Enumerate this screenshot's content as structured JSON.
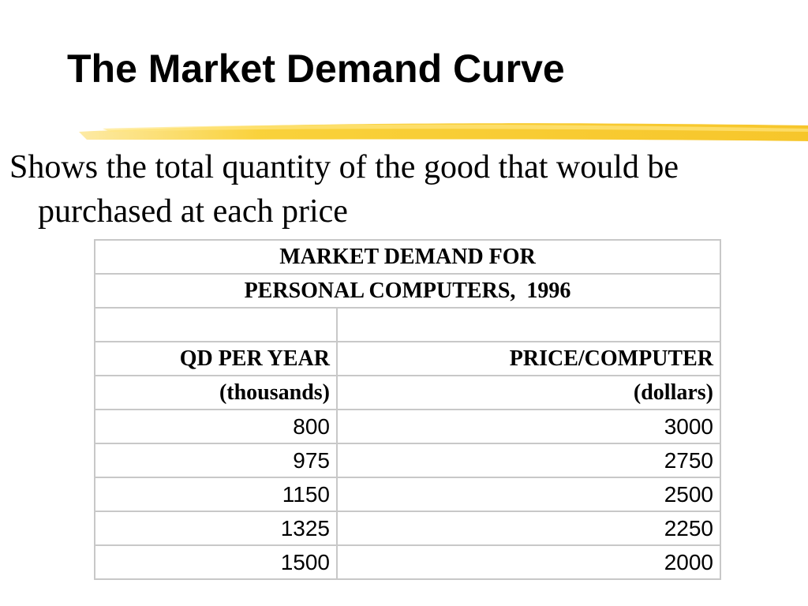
{
  "title": "The Market Demand Curve",
  "body": "Shows the total quantity of the good that would be purchased at each price",
  "table": {
    "caption": [
      "MARKET DEMAND FOR",
      "PERSONAL COMPUTERS,  1996"
    ],
    "headers": [
      [
        "QD PER YEAR",
        "PRICE/COMPUTER"
      ],
      [
        "(thousands)",
        "(dollars)"
      ]
    ],
    "rows": [
      [
        800,
        3000
      ],
      [
        975,
        2750
      ],
      [
        1150,
        2500
      ],
      [
        1325,
        2250
      ],
      [
        1500,
        2000
      ]
    ]
  }
}
